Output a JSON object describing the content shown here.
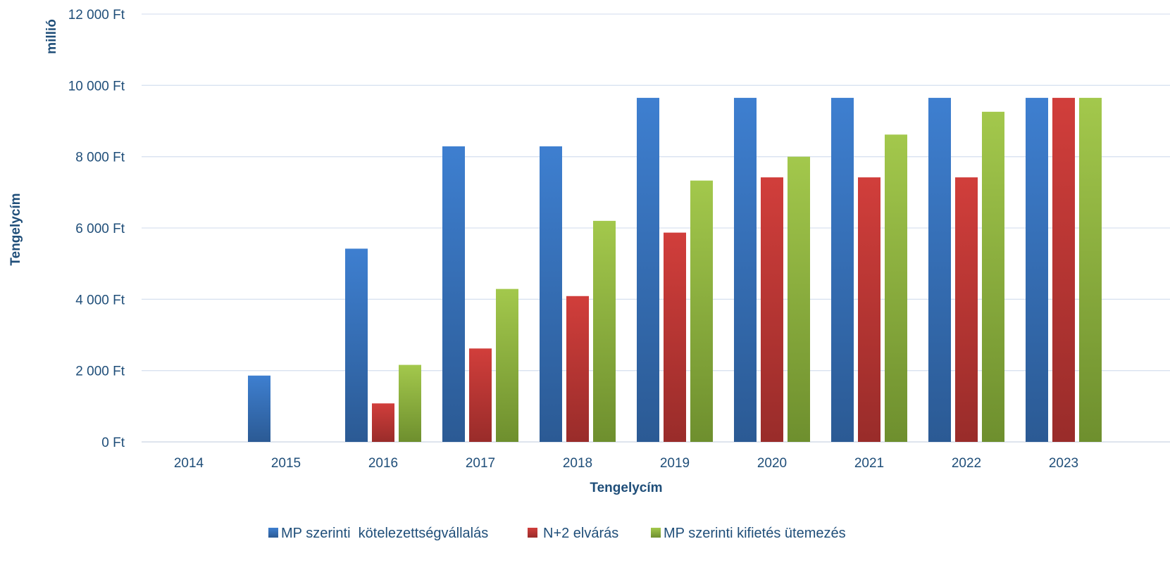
{
  "chart_data": {
    "type": "bar",
    "title": "",
    "y_unit_label": "millió",
    "xlabel": "Tengelycím",
    "ylabel": "Tengelycím",
    "ylim": [
      0,
      12000
    ],
    "yticks": [
      0,
      2000,
      4000,
      6000,
      8000,
      10000,
      12000
    ],
    "ytick_labels": [
      "0 Ft",
      "2 000 Ft",
      "4 000 Ft",
      "6 000 Ft",
      "8 000 Ft",
      "10 000 Ft",
      "12 000 Ft"
    ],
    "grid": true,
    "legend_position": "bottom",
    "categories": [
      "2014",
      "2015",
      "2016",
      "2017",
      "2018",
      "2019",
      "2020",
      "2021",
      "2022",
      "2023"
    ],
    "series": [
      {
        "name": "MP szerinti  kötelezettségvállalás",
        "color": "#3B78C4",
        "values": [
          0,
          1860,
          5420,
          8290,
          8290,
          9650,
          9650,
          9650,
          9650,
          9650
        ]
      },
      {
        "name": "N+2 elvárás",
        "color": "#C83A38",
        "values": [
          0,
          0,
          1080,
          2620,
          4090,
          5870,
          7420,
          7420,
          7420,
          9650
        ]
      },
      {
        "name": "MP szerinti kifietés ütemezés",
        "color": "#98BC44",
        "values": [
          0,
          0,
          2160,
          4290,
          6200,
          7330,
          8000,
          8620,
          9260,
          9650
        ]
      }
    ]
  }
}
